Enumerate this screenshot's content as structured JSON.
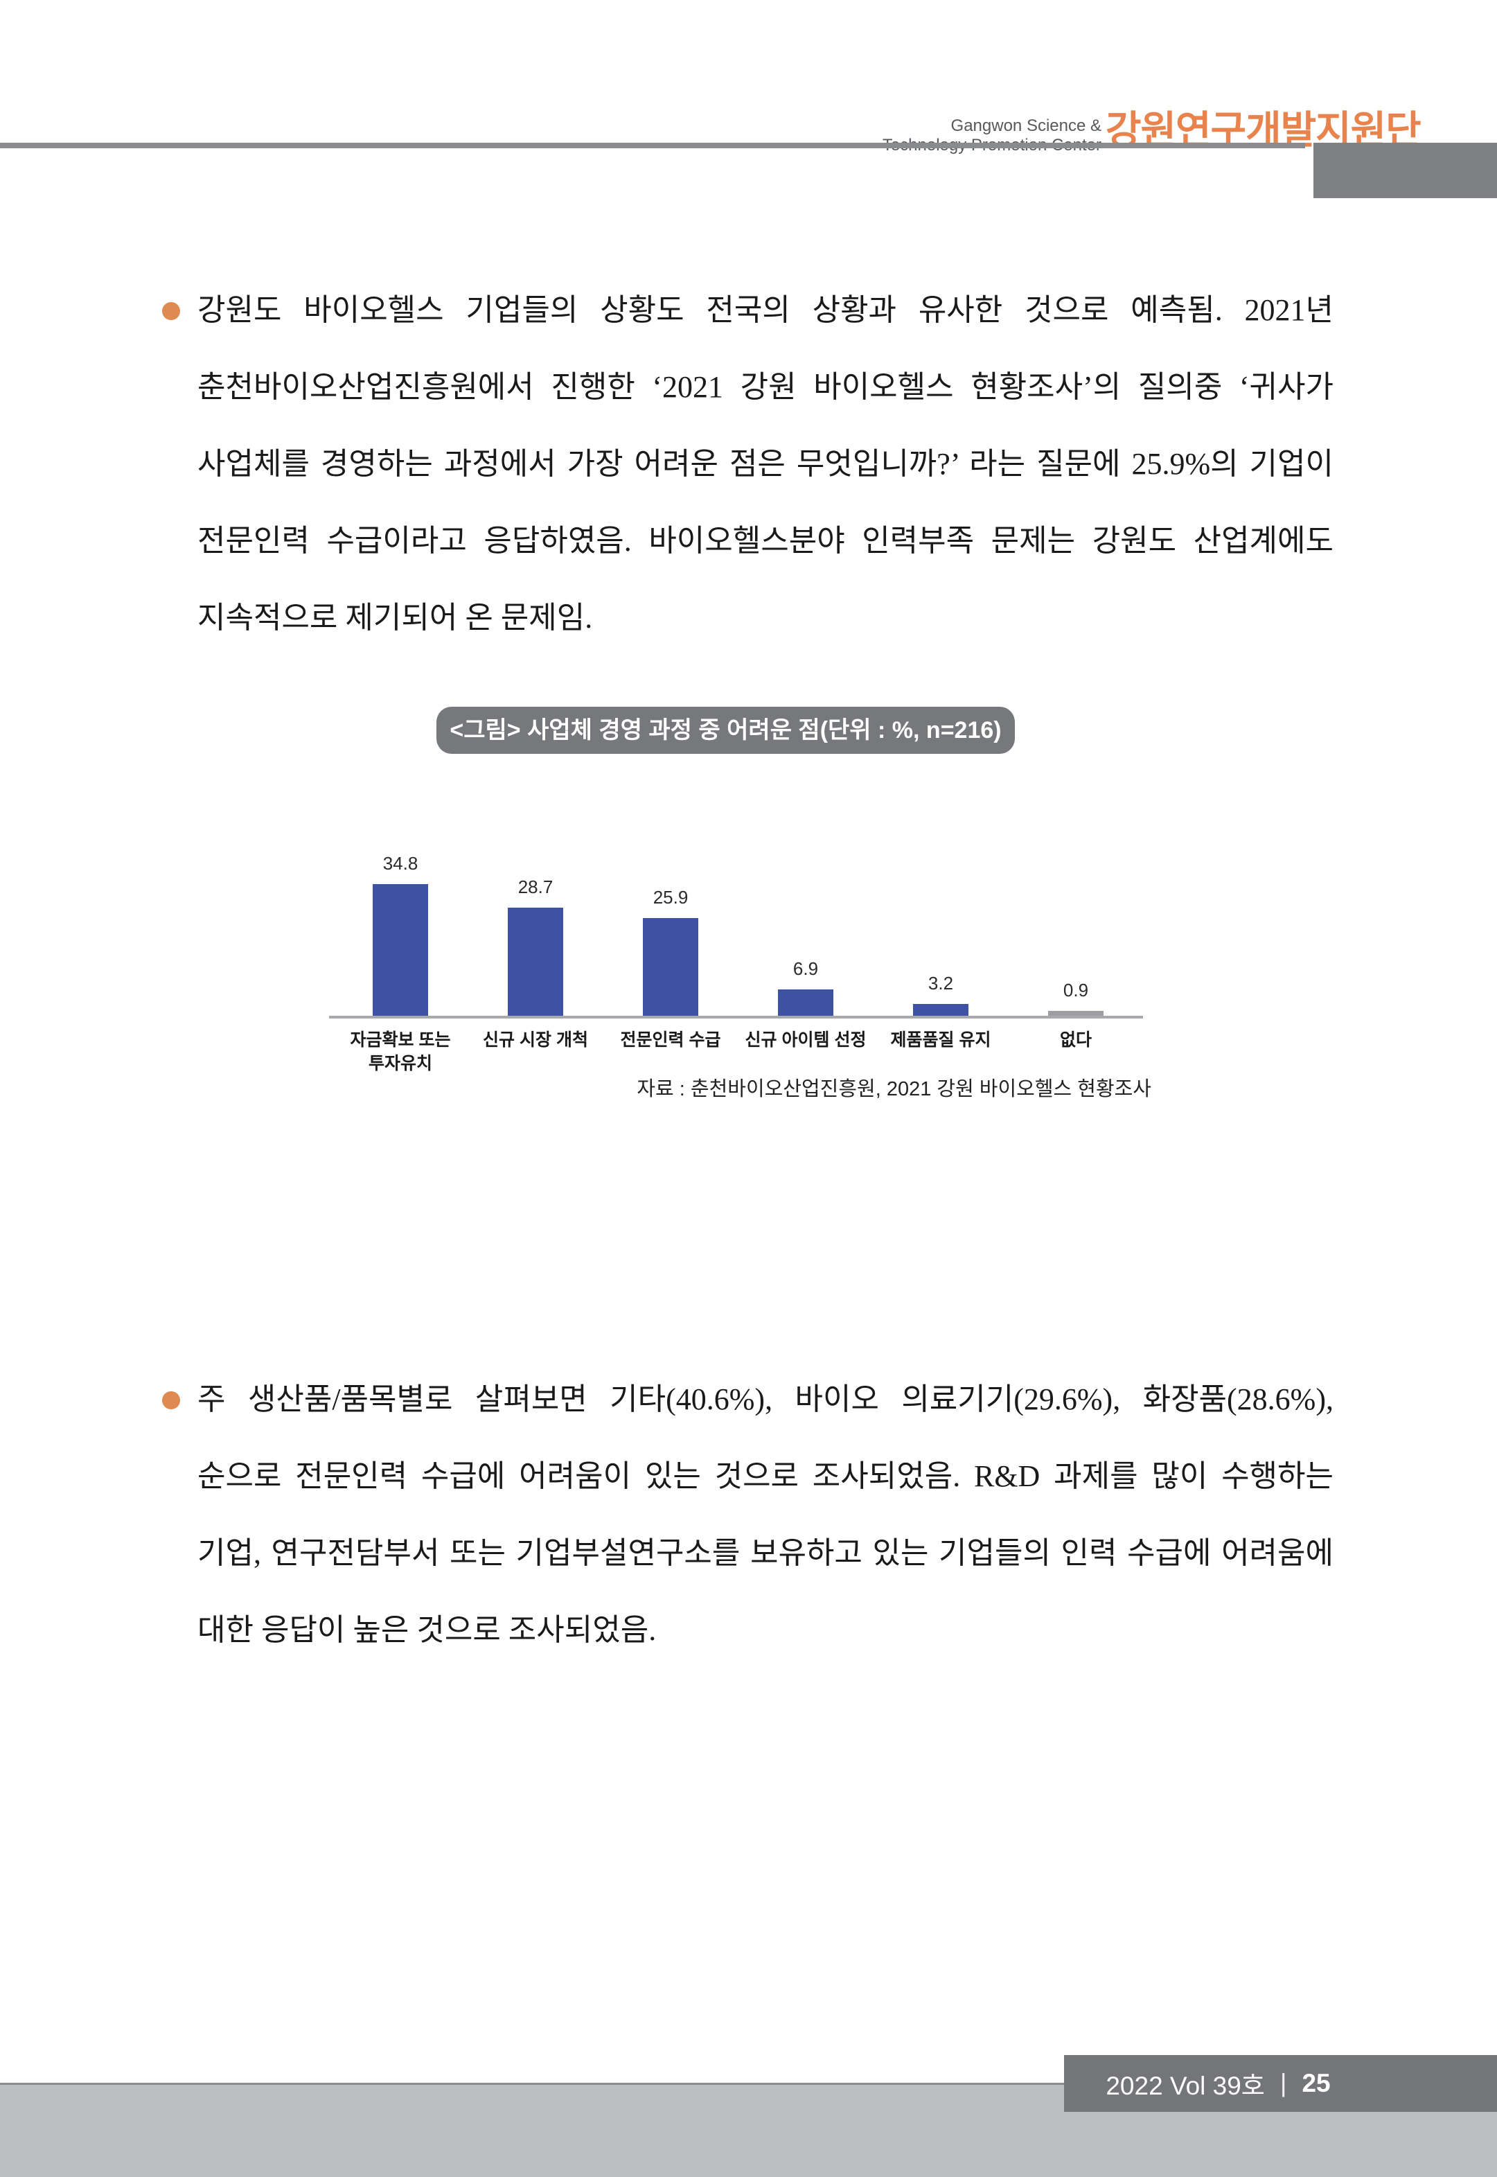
{
  "header": {
    "org_en": "Gangwon Science & Technology Promotion Center",
    "org_kr": "강원연구개발지원단"
  },
  "paragraphs": [
    {
      "text": "강원도 바이오헬스 기업들의 상황도 전국의 상황과 유사한 것으로 예측됨. 2021년 춘천바이오산업진흥원에서 진행한 ‘2021 강원 바이오헬스 현황조사’의 질의중 ‘귀사가 사업체를 경영하는 과정에서 가장 어려운 점은 무엇입니까?’ 라는 질문에 25.9%의 기업이 전문인력 수급이라고 응답하였음. 바이오헬스분야 인력부족 문제는 강원도 산업계에도 지속적으로 제기되어 온 문제임."
    },
    {
      "text": "주 생산품/품목별로 살펴보면 기타(40.6%), 바이오 의료기기(29.6%), 화장품(28.6%), 순으로 전문인력 수급에 어려움이 있는 것으로 조사되었음. R&D 과제를 많이 수행하는 기업, 연구전담부서 또는 기업부설연구소를 보유하고 있는 기업들의 인력 수급에 어려움에 대한 응답이 높은 것으로 조사되었음."
    }
  ],
  "chart": {
    "title": "<그림> 사업체 경영 과정 중 어려운 점(단위 : %, n=216)",
    "source": "자료 : 춘천바이오산업진흥원, 2021 강원 바이오헬스 현황조사"
  },
  "chart_data": {
    "type": "bar",
    "title": "<그림> 사업체 경영 과정 중 어려운 점(단위 : %, n=216)",
    "unit": "%",
    "n": 216,
    "categories": [
      "자금확보 또는\n투자유치",
      "신규 시장 개척",
      "전문인력 수급",
      "신규 아이템 선정",
      "제품품질 유지",
      "없다"
    ],
    "values": [
      34.8,
      28.7,
      25.9,
      6.9,
      3.2,
      0.9
    ],
    "bar_colors": [
      "#3E52A4",
      "#3E52A4",
      "#3E52A4",
      "#3E52A4",
      "#3E52A4",
      "#9B9DA0"
    ],
    "ylim": [
      0,
      40
    ],
    "grid": false,
    "legend": null
  },
  "footer": {
    "issue": "2022 Vol 39호",
    "separator": "|",
    "page": "25"
  },
  "colors": {
    "accent_orange": "#E8834E",
    "bullet_orange": "#DF8A50",
    "bar_blue": "#3E52A4",
    "bar_gray": "#9B9DA0",
    "header_rule_gray": "#8A8B8E",
    "header_block_gray": "#7F8083",
    "title_pill_gray": "#77787B",
    "footer_bar_gray": "#747578",
    "footer_strip_gray": "#BCBEC0"
  }
}
